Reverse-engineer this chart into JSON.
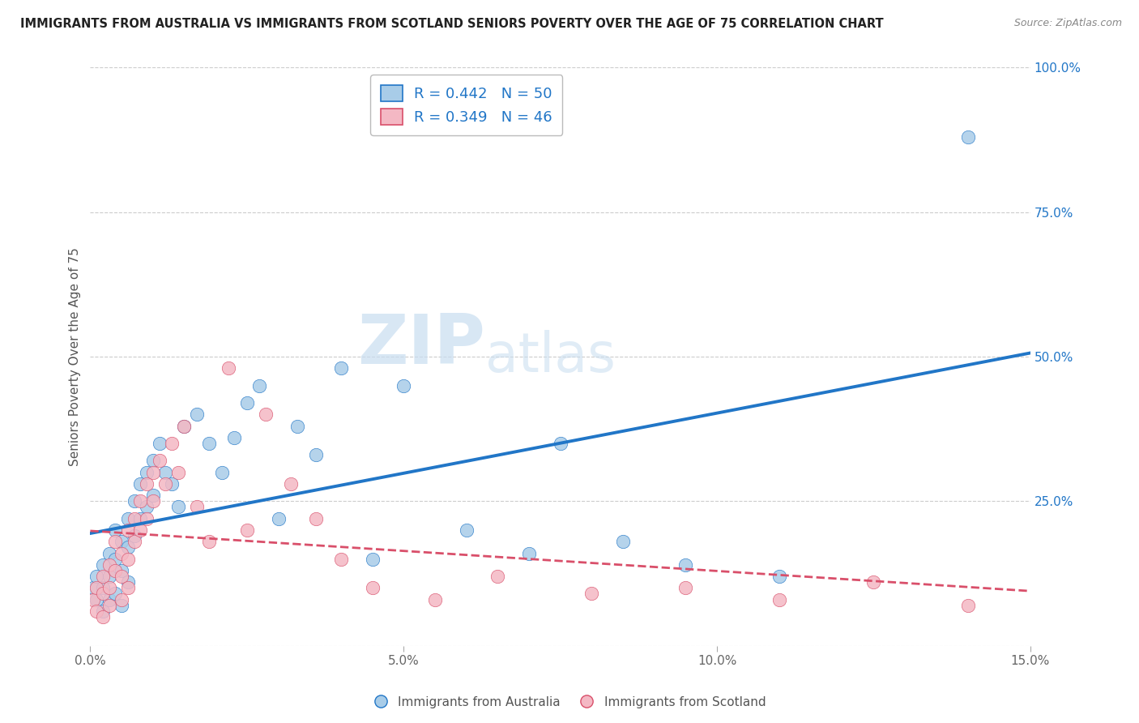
{
  "title": "IMMIGRANTS FROM AUSTRALIA VS IMMIGRANTS FROM SCOTLAND SENIORS POVERTY OVER THE AGE OF 75 CORRELATION CHART",
  "source": "Source: ZipAtlas.com",
  "ylabel": "Seniors Poverty Over the Age of 75",
  "legend_label1": "Immigrants from Australia",
  "legend_label2": "Immigrants from Scotland",
  "R1": 0.442,
  "N1": 50,
  "R2": 0.349,
  "N2": 46,
  "color_australia": "#a8cce8",
  "color_scotland": "#f4b8c4",
  "color_line_australia": "#2176c7",
  "color_line_scotland": "#d94f6a",
  "xlim": [
    0,
    0.15
  ],
  "ylim": [
    0,
    1.0
  ],
  "xticks": [
    0.0,
    0.05,
    0.1,
    0.15
  ],
  "xtick_labels": [
    "0.0%",
    "5.0%",
    "10.0%",
    "15.0%"
  ],
  "yticks_right": [
    0.25,
    0.5,
    0.75,
    1.0
  ],
  "ytick_labels_right": [
    "25.0%",
    "50.0%",
    "75.0%",
    "100.0%"
  ],
  "background_color": "#ffffff",
  "watermark_zip": "ZIP",
  "watermark_atlas": "atlas",
  "aus_x": [
    0.0005,
    0.001,
    0.001,
    0.002,
    0.002,
    0.002,
    0.003,
    0.003,
    0.003,
    0.004,
    0.004,
    0.004,
    0.005,
    0.005,
    0.005,
    0.006,
    0.006,
    0.006,
    0.007,
    0.007,
    0.008,
    0.008,
    0.009,
    0.009,
    0.01,
    0.01,
    0.011,
    0.012,
    0.013,
    0.014,
    0.015,
    0.017,
    0.019,
    0.021,
    0.023,
    0.025,
    0.027,
    0.03,
    0.033,
    0.036,
    0.04,
    0.045,
    0.05,
    0.06,
    0.07,
    0.075,
    0.085,
    0.095,
    0.11,
    0.14
  ],
  "aus_y": [
    0.1,
    0.12,
    0.08,
    0.14,
    0.1,
    0.06,
    0.16,
    0.12,
    0.08,
    0.2,
    0.15,
    0.09,
    0.18,
    0.13,
    0.07,
    0.22,
    0.17,
    0.11,
    0.25,
    0.19,
    0.28,
    0.22,
    0.3,
    0.24,
    0.32,
    0.26,
    0.35,
    0.3,
    0.28,
    0.24,
    0.38,
    0.4,
    0.35,
    0.3,
    0.36,
    0.42,
    0.45,
    0.22,
    0.38,
    0.33,
    0.48,
    0.15,
    0.45,
    0.2,
    0.16,
    0.35,
    0.18,
    0.14,
    0.12,
    0.88
  ],
  "sco_x": [
    0.0005,
    0.001,
    0.001,
    0.002,
    0.002,
    0.002,
    0.003,
    0.003,
    0.003,
    0.004,
    0.004,
    0.005,
    0.005,
    0.005,
    0.006,
    0.006,
    0.006,
    0.007,
    0.007,
    0.008,
    0.008,
    0.009,
    0.009,
    0.01,
    0.01,
    0.011,
    0.012,
    0.013,
    0.014,
    0.015,
    0.017,
    0.019,
    0.022,
    0.025,
    0.028,
    0.032,
    0.036,
    0.04,
    0.045,
    0.055,
    0.065,
    0.08,
    0.095,
    0.11,
    0.125,
    0.14
  ],
  "sco_y": [
    0.08,
    0.1,
    0.06,
    0.12,
    0.09,
    0.05,
    0.14,
    0.1,
    0.07,
    0.18,
    0.13,
    0.16,
    0.12,
    0.08,
    0.2,
    0.15,
    0.1,
    0.22,
    0.18,
    0.25,
    0.2,
    0.28,
    0.22,
    0.3,
    0.25,
    0.32,
    0.28,
    0.35,
    0.3,
    0.38,
    0.24,
    0.18,
    0.48,
    0.2,
    0.4,
    0.28,
    0.22,
    0.15,
    0.1,
    0.08,
    0.12,
    0.09,
    0.1,
    0.08,
    0.11,
    0.07
  ]
}
